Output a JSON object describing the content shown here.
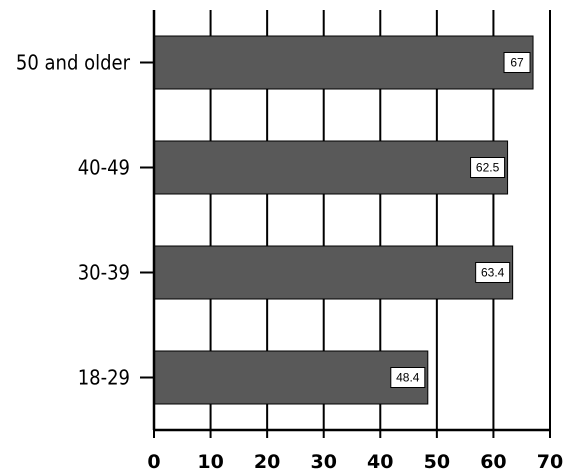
{
  "chart_data": {
    "type": "bar",
    "orientation": "horizontal",
    "categories": [
      "50 and older",
      "40-49",
      "30-39",
      "18-29"
    ],
    "values": [
      67,
      62.5,
      63.4,
      48.4
    ],
    "data_labels": [
      "67",
      "62.5",
      "63.4",
      "48.4"
    ],
    "xlim": [
      0,
      70
    ],
    "x_ticks": [
      0,
      10,
      20,
      30,
      40,
      50,
      60,
      70
    ],
    "x_tick_labels": [
      "0",
      "10",
      "20",
      "30",
      "40",
      "50",
      "60",
      "70"
    ],
    "grid": "vertical",
    "legend": "none",
    "colors": {
      "bar_fill": "#595959",
      "bar_stroke": "#000000",
      "grid": "#000000",
      "label_box_fill": "#ffffff"
    }
  }
}
